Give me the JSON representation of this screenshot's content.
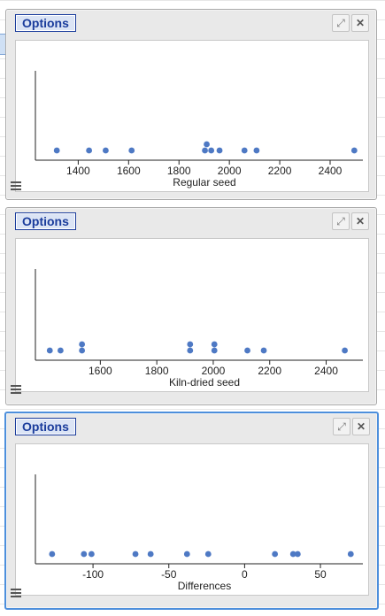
{
  "colors": {
    "dot": "#4e79c4",
    "accent": "#1a3c9c",
    "selected_border": "#4d8fdc"
  },
  "icons": {
    "expand": "expand-icon",
    "close": "close-icon",
    "menu": "hamburger-menu-icon"
  },
  "panels": [
    {
      "options_label": "Options",
      "xlabel": "Regular seed"
    },
    {
      "options_label": "Options",
      "xlabel": "Kiln-dried seed"
    },
    {
      "options_label": "Options",
      "xlabel": "Differences"
    }
  ],
  "chart_data": [
    {
      "type": "scatter",
      "title": "",
      "xlabel": "Regular seed",
      "xlim": [
        1230,
        2530
      ],
      "ticks": [
        1400,
        1600,
        1800,
        2000,
        2200,
        2400
      ],
      "tick_labels": [
        "1400",
        "1600",
        "1800",
        "2000",
        "2200",
        "2400"
      ],
      "values": [
        1315,
        1443,
        1509,
        1612,
        1903,
        1910,
        1928,
        1961,
        2060,
        2108,
        2496
      ]
    },
    {
      "type": "scatter",
      "title": "",
      "xlabel": "Kiln-dried seed",
      "xlim": [
        1370,
        2530
      ],
      "ticks": [
        1600,
        1800,
        2000,
        2200,
        2400
      ],
      "tick_labels": [
        "1600",
        "1800",
        "2000",
        "2200",
        "2400"
      ],
      "values": [
        1421,
        1459,
        1535,
        1535,
        1918,
        1918,
        2004,
        2004,
        2121,
        2179,
        2466
      ]
    },
    {
      "type": "scatter",
      "title": "",
      "xlabel": "Differences",
      "xlim": [
        -138,
        78
      ],
      "ticks": [
        -100,
        -50,
        0,
        50
      ],
      "tick_labels": [
        "-100",
        "-50",
        "0",
        "50"
      ],
      "values": [
        -127,
        -106,
        -101,
        -72,
        -62,
        -38,
        -24,
        20,
        32,
        35,
        70
      ]
    }
  ]
}
